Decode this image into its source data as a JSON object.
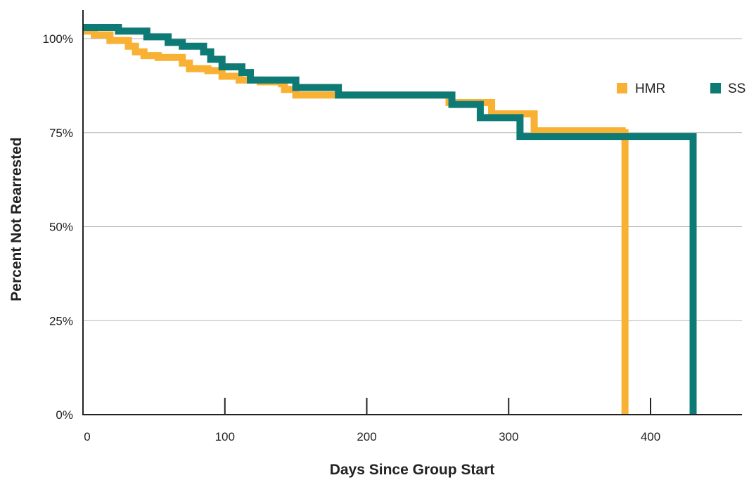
{
  "chart_data": {
    "type": "line",
    "title": "",
    "xlabel": "Days Since Group Start",
    "ylabel": "Percent Not Rearrested",
    "xlim": [
      0,
      465
    ],
    "ylim": [
      0,
      103
    ],
    "x_ticks": [
      {
        "value": 0,
        "label": "0"
      },
      {
        "value": 100,
        "label": "100"
      },
      {
        "value": 200,
        "label": "200"
      },
      {
        "value": 300,
        "label": "300"
      },
      {
        "value": 400,
        "label": "400"
      }
    ],
    "y_ticks": [
      {
        "value": 0,
        "label": "0%"
      },
      {
        "value": 25,
        "label": "25%"
      },
      {
        "value": 50,
        "label": "50%"
      },
      {
        "value": 75,
        "label": "75%"
      },
      {
        "value": 100,
        "label": "100%"
      }
    ],
    "grid": true,
    "legend_position": "right",
    "series": [
      {
        "name": "HMR",
        "color": "#F8B133",
        "x": [
          0,
          8,
          19,
          32,
          37,
          43,
          53,
          70,
          75,
          88,
          98,
          110,
          125,
          140,
          142,
          150,
          180,
          258,
          288,
          318,
          380,
          382,
          382
        ],
        "y": [
          102,
          101,
          99.5,
          98,
          96.5,
          95.5,
          95,
          93.5,
          92,
          91.5,
          90,
          89,
          88.5,
          88,
          86.5,
          85,
          85,
          83,
          80,
          75.5,
          75,
          75,
          0
        ]
      },
      {
        "name": "SS",
        "color": "#0E7A76",
        "x": [
          0,
          25,
          45,
          60,
          70,
          85,
          90,
          98,
          112,
          118,
          125,
          150,
          180,
          260,
          280,
          308,
          320,
          400,
          428,
          430,
          430
        ],
        "y": [
          103,
          102,
          100.5,
          99,
          98,
          96.5,
          94.5,
          92.5,
          91,
          89,
          89,
          87,
          85,
          82.5,
          79,
          74,
          74,
          74,
          74,
          74,
          0
        ]
      }
    ]
  }
}
